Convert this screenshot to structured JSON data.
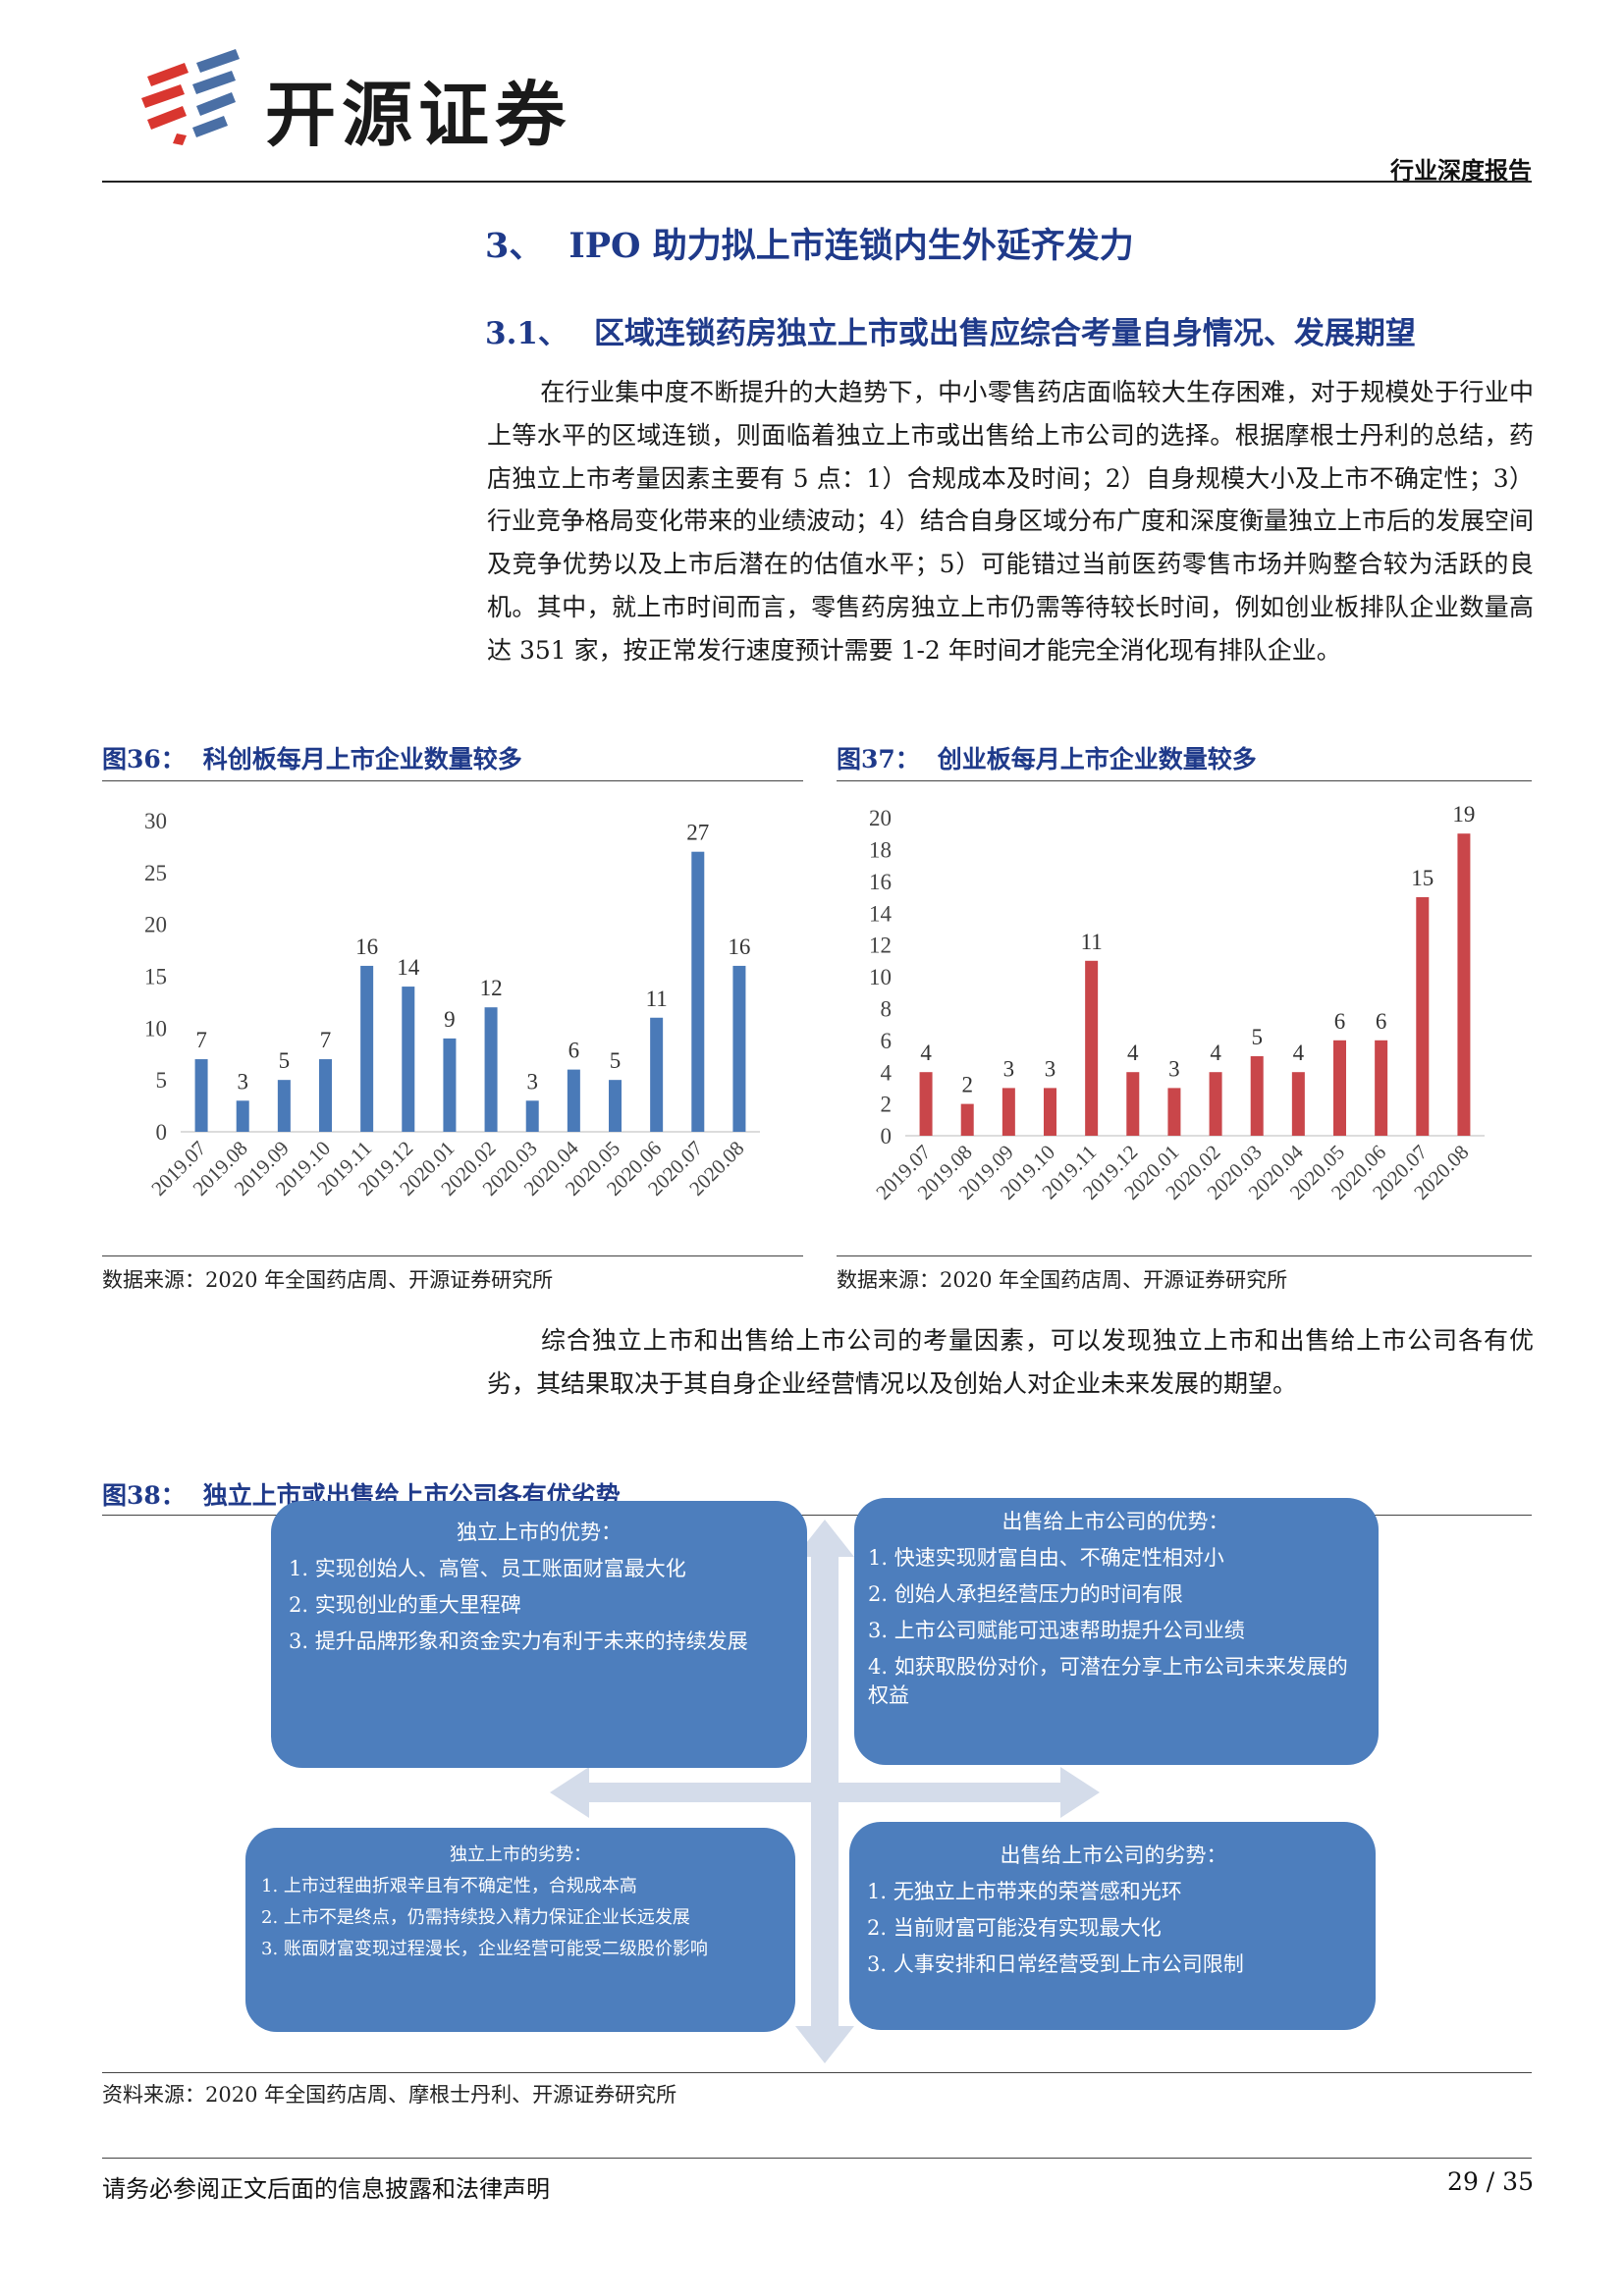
{
  "header": {
    "brand": "开源证券",
    "report_type": "行业深度报告"
  },
  "section": {
    "number": "3、",
    "title": "IPO 助力拟上市连锁内生外延齐发力"
  },
  "subsection": {
    "number": "3.1、",
    "title": "区域连锁药房独立上市或出售应综合考量自身情况、发展期望"
  },
  "paragraph1": "在行业集中度不断提升的大趋势下，中小零售药店面临较大生存困难，对于规模处于行业中上等水平的区域连锁，则面临着独立上市或出售给上市公司的选择。根据摩根士丹利的总结，药店独立上市考量因素主要有 5 点：1）合规成本及时间；2）自身规模大小及上市不确定性；3）行业竞争格局变化带来的业绩波动；4）结合自身区域分布广度和深度衡量独立上市后的发展空间及竞争优势以及上市后潜在的估值水平；5）可能错过当前医药零售市场并购整合较为活跃的良机。其中，就上市时间而言，零售药房独立上市仍需等待较长时间，例如创业板排队企业数量高达 351 家，按正常发行速度预计需要 1-2 年时间才能完全消化现有排队企业。",
  "figure36": {
    "label": "图36：",
    "title": "科创板每月上市企业数量较多",
    "source": "数据来源：2020 年全国药店周、开源证券研究所"
  },
  "figure37": {
    "label": "图37：",
    "title": "创业板每月上市企业数量较多",
    "source": "数据来源：2020 年全国药店周、开源证券研究所"
  },
  "chart_data": [
    {
      "type": "bar",
      "categories": [
        "2019.07",
        "2019.08",
        "2019.09",
        "2019.10",
        "2019.11",
        "2019.12",
        "2020.01",
        "2020.02",
        "2020.03",
        "2020.04",
        "2020.05",
        "2020.06",
        "2020.07",
        "2020.08"
      ],
      "values": [
        7,
        3,
        5,
        7,
        16,
        14,
        9,
        12,
        3,
        6,
        5,
        11,
        27,
        16
      ],
      "ylim": [
        0,
        30
      ],
      "yticks": [
        0,
        5,
        10,
        15,
        20,
        25,
        30
      ],
      "color": "#4a7ab8",
      "grid": false,
      "data_labels": true
    },
    {
      "type": "bar",
      "categories": [
        "2019.07",
        "2019.08",
        "2019.09",
        "2019.10",
        "2019.11",
        "2019.12",
        "2020.01",
        "2020.02",
        "2020.03",
        "2020.04",
        "2020.05",
        "2020.06",
        "2020.07",
        "2020.08"
      ],
      "values": [
        4,
        2,
        3,
        3,
        11,
        4,
        3,
        4,
        5,
        4,
        6,
        6,
        15,
        19
      ],
      "ylim": [
        0,
        20
      ],
      "yticks": [
        0,
        2,
        4,
        6,
        8,
        10,
        12,
        14,
        16,
        18,
        20
      ],
      "color": "#c9464a",
      "grid": false,
      "data_labels": true
    }
  ],
  "paragraph2": "综合独立上市和出售给上市公司的考量因素，可以发现独立上市和出售给上市公司各有优劣，其结果取决于其自身企业经营情况以及创始人对企业未来发展的期望。",
  "figure38": {
    "label": "图38：",
    "title": "独立上市或出售给上市公司各有优劣势",
    "source": "资料来源：2020 年全国药店周、摩根士丹利、开源证券研究所",
    "ipo_advantages": {
      "title": "独立上市的优势：",
      "items": [
        "1. 实现创始人、高管、员工账面财富最大化",
        "2. 实现创业的重大里程碑",
        "3. 提升品牌形象和资金实力有利于未来的持续发展"
      ]
    },
    "sell_advantages": {
      "title": "出售给上市公司的优势：",
      "items": [
        "1. 快速实现财富自由、不确定性相对小",
        "2. 创始人承担经营压力的时间有限",
        "3. 上市公司赋能可迅速帮助提升公司业绩",
        "4. 如获取股份对价，可潜在分享上市公司未来发展的权益"
      ]
    },
    "ipo_disadvantages": {
      "title": "独立上市的劣势：",
      "items": [
        "1. 上市过程曲折艰辛且有不确定性，合规成本高",
        "2. 上市不是终点，仍需持续投入精力保证企业长远发展",
        "3. 账面财富变现过程漫长，企业经营可能受二级股价影响"
      ]
    },
    "sell_disadvantages": {
      "title": "出售给上市公司的劣势：",
      "items": [
        "1. 无独立上市带来的荣誉感和光环",
        "2. 当前财富可能没有实现最大化",
        "3. 人事安排和日常经营受到上市公司限制"
      ]
    },
    "colors": {
      "box": "#4d7ebd",
      "arrow": "#d4dcea"
    }
  },
  "footer": {
    "disclaimer": "请务必参阅正文后面的信息披露和法律声明",
    "page": "29 / 35"
  }
}
